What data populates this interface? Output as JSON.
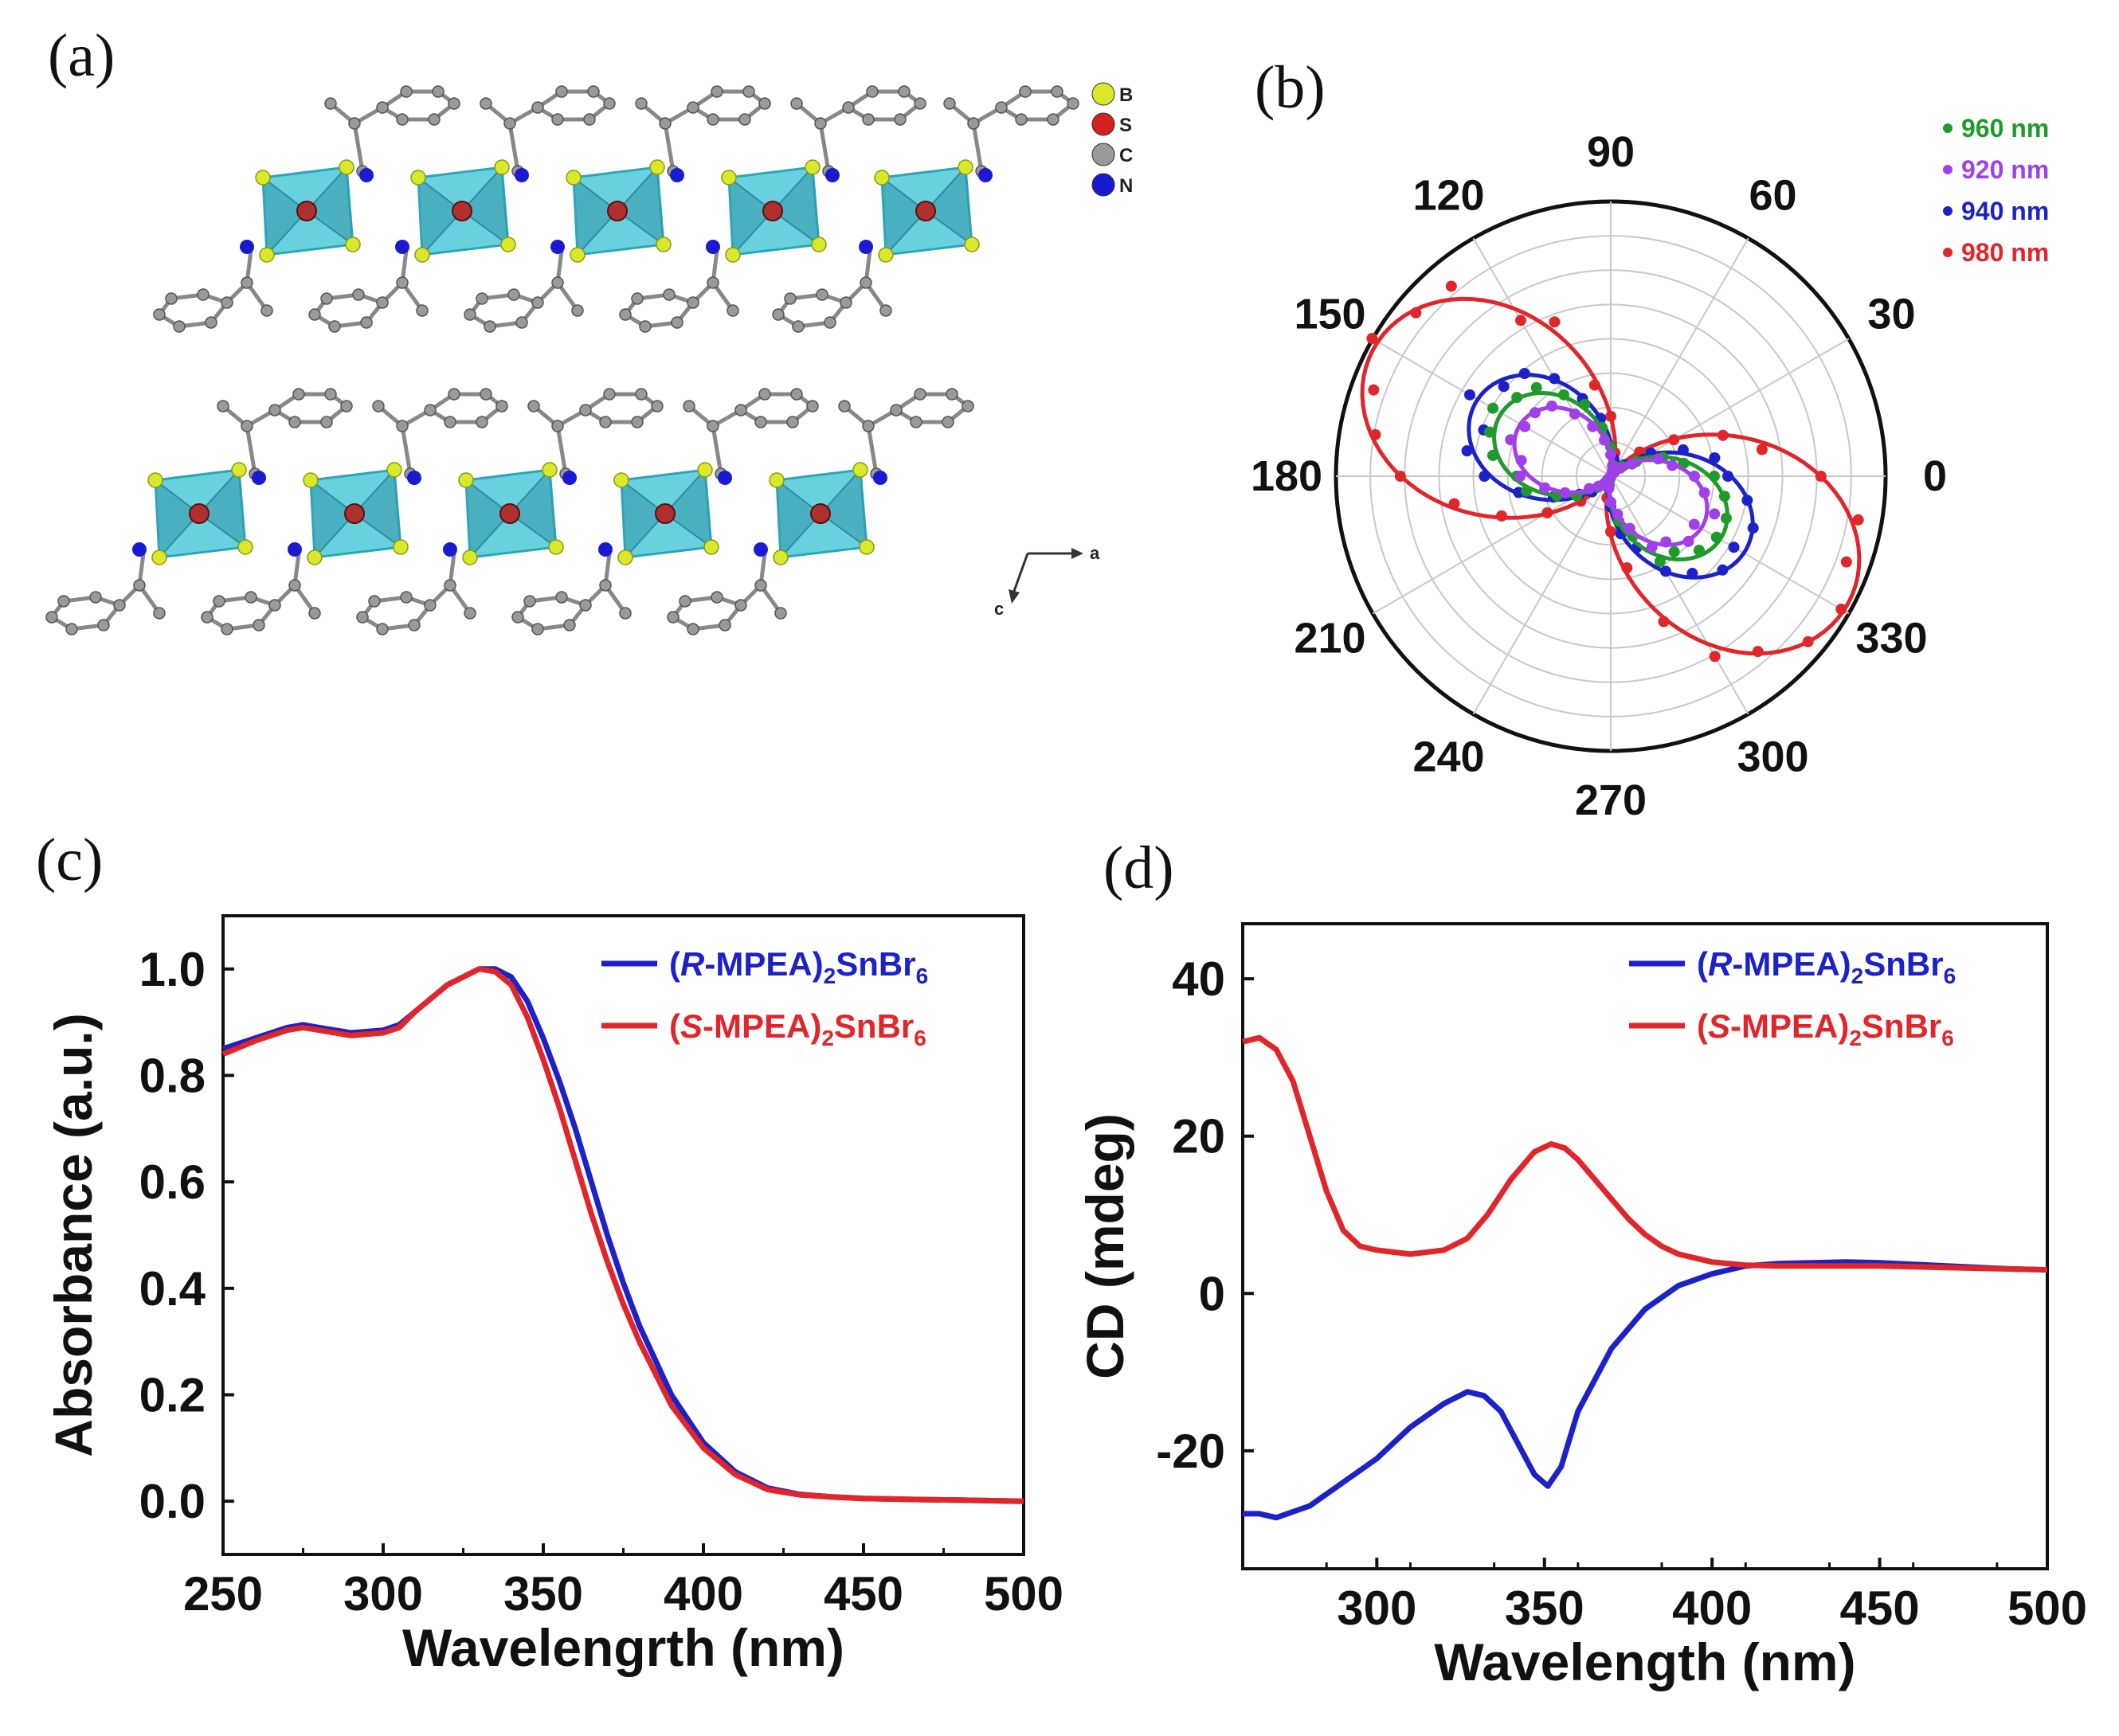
{
  "panels": {
    "a": "(a)",
    "b": "(b)",
    "c": "(c)",
    "d": "(d)"
  },
  "structure": {
    "atom_legend": [
      {
        "label": "B",
        "color": "#d9e82a"
      },
      {
        "label": "S",
        "color": "#d42020"
      },
      {
        "label": "C",
        "color": "#9a9a9a"
      },
      {
        "label": "N",
        "color": "#1a1ad0"
      }
    ],
    "axis_labels": {
      "a": "a",
      "c": "c"
    },
    "octahedron_color": "#4fc9d8"
  },
  "chart_data": [
    {
      "id": "b",
      "type": "polar",
      "angle_ticks": [
        "0",
        "30",
        "60",
        "90",
        "120",
        "150",
        "180",
        "210",
        "240",
        "270",
        "300",
        "330"
      ],
      "series": [
        {
          "name": "960 nm",
          "color": "#1f9a2b",
          "amplitude": 0.46,
          "axis_deg": 152
        },
        {
          "name": "920 nm",
          "color": "#a040e8",
          "amplitude": 0.38,
          "axis_deg": 152
        },
        {
          "name": "940 nm",
          "color": "#1c22c8",
          "amplitude": 0.56,
          "axis_deg": 152
        },
        {
          "name": "980 nm",
          "color": "#e0262a",
          "amplitude": 0.98,
          "axis_deg": 152
        }
      ]
    },
    {
      "id": "c",
      "type": "line",
      "xlabel": "Wavelengrth (nm)",
      "ylabel": "Absorbance (a.u.)",
      "xlim": [
        250,
        500
      ],
      "ylim": [
        -0.1,
        1.1
      ],
      "xticks": [
        250,
        300,
        350,
        400,
        450,
        500
      ],
      "yticks": [
        "0.0",
        "0.2",
        "0.4",
        "0.6",
        "0.8",
        "1.0"
      ],
      "series": [
        {
          "name_pre": "(",
          "name_it": "R",
          "name_mid": "-MPEA)",
          "name_sub1": "2",
          "name_mid2": "SnBr",
          "name_sub2": "6",
          "color": "#1c22c8",
          "x": [
            250,
            260,
            270,
            275,
            280,
            290,
            300,
            305,
            310,
            320,
            330,
            335,
            340,
            345,
            350,
            355,
            360,
            365,
            370,
            375,
            380,
            390,
            400,
            410,
            420,
            430,
            440,
            450,
            460,
            470,
            480,
            490,
            500
          ],
          "y": [
            0.85,
            0.87,
            0.89,
            0.895,
            0.89,
            0.88,
            0.885,
            0.895,
            0.92,
            0.97,
            1.0,
            1.0,
            0.985,
            0.94,
            0.87,
            0.79,
            0.7,
            0.6,
            0.5,
            0.41,
            0.33,
            0.2,
            0.11,
            0.055,
            0.025,
            0.013,
            0.008,
            0.005,
            0.004,
            0.003,
            0.002,
            0.001,
            0.0
          ]
        },
        {
          "name_pre": "(",
          "name_it": "S",
          "name_mid": "-MPEA)",
          "name_sub1": "2",
          "name_mid2": "SnBr",
          "name_sub2": "6",
          "color": "#e0262a",
          "x": [
            250,
            260,
            270,
            275,
            280,
            290,
            300,
            305,
            310,
            320,
            330,
            335,
            340,
            345,
            350,
            355,
            360,
            365,
            370,
            375,
            380,
            390,
            400,
            410,
            420,
            430,
            440,
            450,
            460,
            470,
            480,
            490,
            500
          ],
          "y": [
            0.84,
            0.865,
            0.885,
            0.89,
            0.885,
            0.875,
            0.88,
            0.89,
            0.92,
            0.97,
            1.0,
            0.995,
            0.97,
            0.91,
            0.83,
            0.74,
            0.64,
            0.54,
            0.45,
            0.37,
            0.3,
            0.18,
            0.1,
            0.05,
            0.022,
            0.012,
            0.008,
            0.005,
            0.004,
            0.003,
            0.002,
            0.001,
            0.0
          ]
        }
      ]
    },
    {
      "id": "d",
      "type": "line",
      "xlabel": "Wavelength (nm)",
      "ylabel": "CD (mdeg)",
      "xlim": [
        260,
        500
      ],
      "ylim": [
        -35,
        47
      ],
      "xticks": [
        300,
        350,
        400,
        450,
        500
      ],
      "yticks": [
        "-20",
        "0",
        "20",
        "40"
      ],
      "series": [
        {
          "name_pre": "(",
          "name_it": "R",
          "name_mid": "-MPEA)",
          "name_sub1": "2",
          "name_mid2": "SnBr",
          "name_sub2": "6",
          "color": "#1c22c8",
          "x": [
            260,
            265,
            270,
            280,
            290,
            300,
            310,
            320,
            327,
            332,
            337,
            342,
            347,
            351,
            355,
            360,
            370,
            380,
            390,
            400,
            410,
            420,
            430,
            440,
            450,
            460,
            470,
            480,
            490,
            500
          ],
          "y": [
            -28,
            -28,
            -28.5,
            -27,
            -24,
            -21,
            -17,
            -14,
            -12.5,
            -13,
            -15,
            -19,
            -23,
            -24.5,
            -22,
            -15,
            -7,
            -2,
            1,
            2.5,
            3.5,
            3.8,
            3.9,
            4,
            3.9,
            3.7,
            3.5,
            3.3,
            3.1,
            3.0
          ]
        },
        {
          "name_pre": "(",
          "name_it": "S",
          "name_mid": "-MPEA)",
          "name_sub1": "2",
          "name_mid2": "SnBr",
          "name_sub2": "6",
          "color": "#e0262a",
          "x": [
            260,
            265,
            270,
            275,
            280,
            285,
            290,
            295,
            300,
            310,
            320,
            327,
            333,
            340,
            347,
            352,
            356,
            360,
            365,
            370,
            375,
            380,
            385,
            390,
            400,
            410,
            420,
            430,
            440,
            450,
            460,
            470,
            480,
            490,
            500
          ],
          "y": [
            32,
            32.5,
            31,
            27,
            20,
            13,
            8,
            6,
            5.5,
            5,
            5.5,
            7,
            10,
            14.5,
            18,
            19,
            18.5,
            17,
            14.5,
            12,
            9.5,
            7.5,
            6,
            5,
            4,
            3.6,
            3.5,
            3.5,
            3.5,
            3.5,
            3.4,
            3.3,
            3.2,
            3.1,
            3.0
          ]
        }
      ]
    }
  ]
}
